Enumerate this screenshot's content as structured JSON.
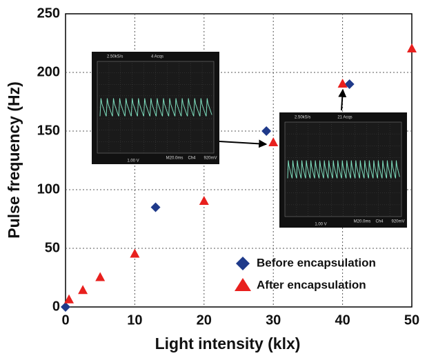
{
  "chart_data": {
    "type": "scatter",
    "xlabel": "Light intensity (klx)",
    "ylabel": "Pulse frequency (Hz)",
    "xlim": [
      0,
      50
    ],
    "ylim": [
      0,
      250
    ],
    "xticks": [
      0,
      10,
      20,
      30,
      40,
      50
    ],
    "yticks": [
      0,
      50,
      100,
      150,
      200,
      250
    ],
    "grid": true,
    "legend": "lower right",
    "series": [
      {
        "name": "Before encapsulation",
        "color": "#1f3a8a",
        "marker": "diamond",
        "x": [
          0,
          13,
          29,
          41
        ],
        "values": [
          0,
          85,
          150,
          190
        ]
      },
      {
        "name": "After encapsulation",
        "color": "#e8201e",
        "marker": "triangle",
        "x": [
          0.5,
          2.5,
          5,
          10,
          20,
          30,
          40,
          50
        ],
        "values": [
          6,
          14,
          25,
          45,
          90,
          140,
          190,
          220
        ]
      }
    ]
  },
  "insets": [
    {
      "labels": [
        "2.50kS/s",
        "4 Acqs",
        "M20.0ms",
        "Ch4",
        "920mV",
        "1.00 V"
      ]
    },
    {
      "labels": [
        "2.50kS/s",
        "21 Acqs",
        "M20.0ms",
        "Ch4",
        "920mV",
        "1.00 V"
      ]
    }
  ]
}
